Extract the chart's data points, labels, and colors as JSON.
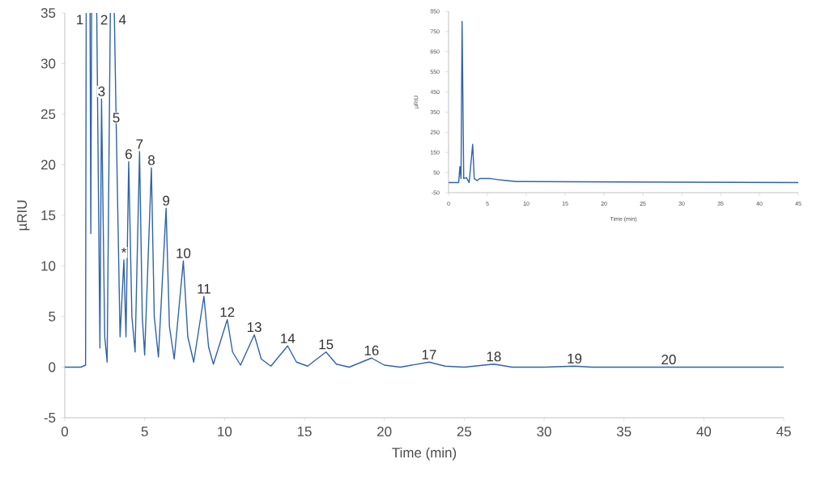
{
  "chart_data": [
    {
      "type": "line",
      "xlabel": "Time (min)",
      "ylabel": "µRIU",
      "xlim": [
        0,
        45
      ],
      "ylim": [
        -5,
        35
      ],
      "xticks": [
        0,
        5,
        10,
        15,
        20,
        25,
        30,
        35,
        40,
        45
      ],
      "yticks": [
        -5,
        0,
        5,
        10,
        15,
        20,
        25,
        30,
        35
      ],
      "grid": false,
      "series": [
        {
          "color": "#2f63a8",
          "x": [
            0,
            1.0,
            1.3,
            1.34,
            1.45,
            1.58,
            1.63,
            1.68,
            1.85,
            2.0,
            2.2,
            2.3,
            2.5,
            2.65,
            2.85,
            3.0,
            3.1,
            3.22,
            3.46,
            3.7,
            3.83,
            4.0,
            4.2,
            4.4,
            4.68,
            4.85,
            5.0,
            5.42,
            5.6,
            5.86,
            6.34,
            6.55,
            6.85,
            7.42,
            7.7,
            8.07,
            8.71,
            9.0,
            9.3,
            10.17,
            10.5,
            11.0,
            11.86,
            12.3,
            12.9,
            13.95,
            14.5,
            15.2,
            16.35,
            17.0,
            17.8,
            19.2,
            20.0,
            21.0,
            22.8,
            23.8,
            25.0,
            26.85,
            28.0,
            30.0,
            31.9,
            33.0,
            37.8,
            45
          ],
          "values": [
            0,
            0,
            0.2,
            35,
            null,
            35,
            13.2,
            35,
            null,
            35,
            1.9,
            26.5,
            3,
            0.5,
            35,
            null,
            35,
            23.9,
            3,
            10.6,
            3,
            20.3,
            5,
            1.5,
            21.3,
            5,
            1.2,
            19.7,
            5,
            1.0,
            15.7,
            4,
            0.8,
            10.5,
            3,
            0.5,
            7,
            2,
            0.3,
            4.7,
            1.5,
            0.2,
            3.2,
            0.8,
            0.1,
            2.1,
            0.5,
            0.1,
            1.5,
            0.3,
            0,
            0.9,
            0.2,
            0,
            0.5,
            0.1,
            0,
            0.3,
            0,
            0,
            0.1,
            0,
            0,
            0
          ]
        }
      ],
      "annotations": [
        {
          "text": "1",
          "x": 1.4,
          "y": 35
        },
        {
          "text": "2",
          "x": 1.8,
          "y": 35
        },
        {
          "text": "3",
          "x": 2.3,
          "y": 26.5
        },
        {
          "text": "4",
          "x": 2.95,
          "y": 35
        },
        {
          "text": "5",
          "x": 3.22,
          "y": 23.9
        },
        {
          "text": "*",
          "x": 3.7,
          "y": 10.6
        },
        {
          "text": "6",
          "x": 4.0,
          "y": 20.3
        },
        {
          "text": "7",
          "x": 4.68,
          "y": 21.3
        },
        {
          "text": "8",
          "x": 5.42,
          "y": 19.7
        },
        {
          "text": "9",
          "x": 6.34,
          "y": 15.7
        },
        {
          "text": "10",
          "x": 7.42,
          "y": 10.5
        },
        {
          "text": "11",
          "x": 8.71,
          "y": 7
        },
        {
          "text": "12",
          "x": 10.17,
          "y": 4.7
        },
        {
          "text": "13",
          "x": 11.86,
          "y": 3.2
        },
        {
          "text": "14",
          "x": 13.95,
          "y": 2.1
        },
        {
          "text": "15",
          "x": 16.35,
          "y": 1.5
        },
        {
          "text": "16",
          "x": 19.2,
          "y": 0.9
        },
        {
          "text": "17",
          "x": 22.8,
          "y": 0.5
        },
        {
          "text": "18",
          "x": 26.85,
          "y": 0.3
        },
        {
          "text": "19",
          "x": 31.9,
          "y": 0.1
        },
        {
          "text": "20",
          "x": 37.8,
          "y": 0
        }
      ]
    },
    {
      "type": "line",
      "xlabel": "Time (min)",
      "ylabel": "µRIU",
      "xlim": [
        0,
        45
      ],
      "ylim": [
        -50,
        850
      ],
      "xticks": [
        0,
        5,
        10,
        15,
        20,
        25,
        30,
        35,
        40,
        45
      ],
      "yticks": [
        -50,
        50,
        150,
        250,
        350,
        450,
        550,
        650,
        750,
        850
      ],
      "grid": false,
      "series": [
        {
          "color": "#2f63a8",
          "x": [
            0,
            1.3,
            1.46,
            1.6,
            1.74,
            1.95,
            2.3,
            2.65,
            3.1,
            3.3,
            3.7,
            4.0,
            4.68,
            5.42,
            6.34,
            7.42,
            8.71,
            10.17,
            45
          ],
          "values": [
            0,
            0,
            80,
            20,
            800,
            20,
            25,
            0,
            190,
            20,
            10,
            20,
            20,
            20,
            15,
            10,
            5,
            5,
            0
          ]
        }
      ]
    }
  ]
}
